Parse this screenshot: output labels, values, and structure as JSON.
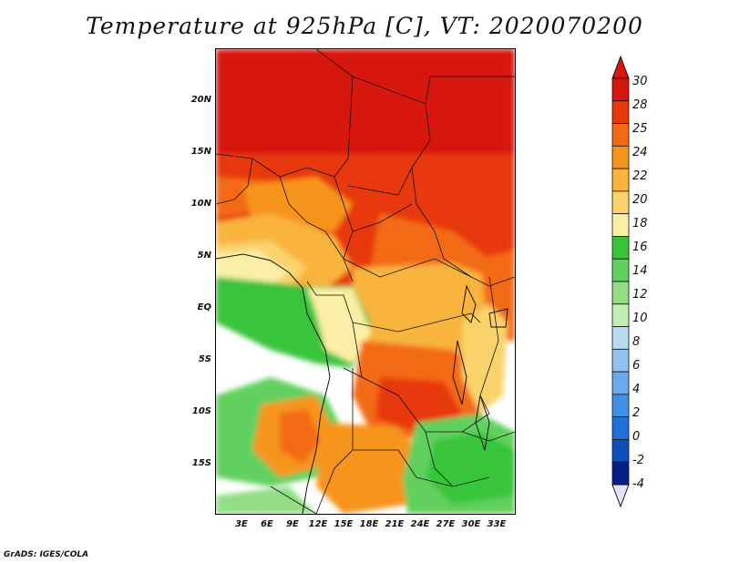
{
  "title": "Temperature at 925hPa [C], VT: 2020070200",
  "footer": "GrADS: IGES/COLA",
  "map": {
    "y_ticks": [
      "20N",
      "15N",
      "10N",
      "5N",
      "EQ",
      "5S",
      "10S",
      "15S"
    ],
    "x_ticks": [
      "3E",
      "6E",
      "9E",
      "12E",
      "15E",
      "18E",
      "21E",
      "24E",
      "27E",
      "30E",
      "33E"
    ]
  },
  "legend": {
    "labels": [
      "30",
      "28",
      "25",
      "24",
      "22",
      "20",
      "18",
      "16",
      "14",
      "12",
      "10",
      "8",
      "6",
      "4",
      "2",
      "0",
      "-2",
      "-4"
    ],
    "colors": [
      "#d7140f",
      "#e8390c",
      "#f36a12",
      "#f7941a",
      "#f9b43c",
      "#fbd36c",
      "#fbeea6",
      "#38c43a",
      "#62d05e",
      "#92dd86",
      "#c3edb5",
      "#b6dcf4",
      "#92c3ef",
      "#6aaaea",
      "#4290e5",
      "#1f70d9",
      "#0e4fbd",
      "#061f86"
    ],
    "top_color": "#d7140f",
    "bottom_color": "#e6e2f6"
  }
}
